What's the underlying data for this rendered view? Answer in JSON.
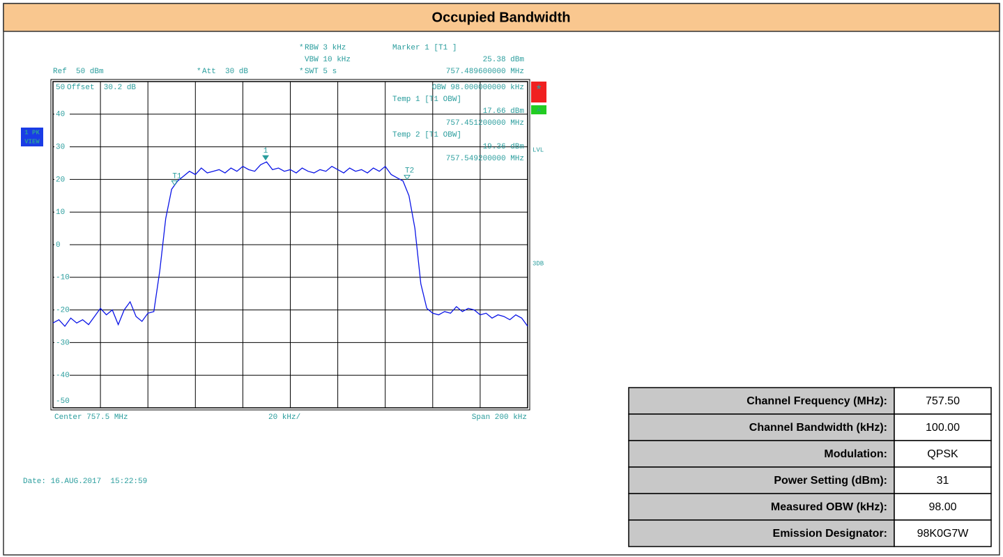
{
  "header": {
    "title": "Occupied Bandwidth"
  },
  "chart_data": {
    "type": "line",
    "x": [
      757.4,
      757.4025,
      757.405,
      757.4075,
      757.41,
      757.4125,
      757.415,
      757.4175,
      757.42,
      757.4225,
      757.425,
      757.4275,
      757.43,
      757.4325,
      757.435,
      757.4375,
      757.44,
      757.4425,
      757.445,
      757.4475,
      757.45,
      757.4525,
      757.455,
      757.4575,
      757.46,
      757.4625,
      757.465,
      757.4675,
      757.47,
      757.4725,
      757.475,
      757.4775,
      757.48,
      757.4825,
      757.485,
      757.4875,
      757.49,
      757.4925,
      757.495,
      757.4975,
      757.5,
      757.5025,
      757.505,
      757.5075,
      757.51,
      757.5125,
      757.515,
      757.5175,
      757.52,
      757.5225,
      757.525,
      757.5275,
      757.53,
      757.5325,
      757.535,
      757.5375,
      757.54,
      757.5425,
      757.545,
      757.5475,
      757.55,
      757.5525,
      757.555,
      757.5575,
      757.56,
      757.5625,
      757.565,
      757.5675,
      757.57,
      757.5725,
      757.575,
      757.5775,
      757.58,
      757.5825,
      757.585,
      757.5875,
      757.59,
      757.5925,
      757.595,
      757.5975,
      757.6
    ],
    "values": [
      -24,
      -23,
      -25,
      -22.5,
      -24,
      -23,
      -24.5,
      -22,
      -19.5,
      -21.5,
      -20,
      -24.5,
      -20,
      -17.5,
      -22,
      -23.5,
      -21,
      -20.5,
      -8,
      8,
      17,
      19.5,
      21,
      22.5,
      21.5,
      23.5,
      22,
      22.5,
      23,
      22,
      23.5,
      22.5,
      24,
      23,
      22.5,
      24.5,
      25.38,
      23,
      23.5,
      22.5,
      23,
      22,
      23.5,
      22.5,
      22,
      23,
      22.5,
      24,
      23,
      22,
      23.5,
      22.5,
      23,
      22,
      23.5,
      22.5,
      24,
      21.5,
      20.5,
      19.5,
      15,
      5,
      -12,
      -19.5,
      -21,
      -21.5,
      -20.5,
      -21,
      -19,
      -20.5,
      -19.5,
      -20,
      -21.5,
      -21,
      -22.5,
      -21.5,
      -22,
      -23,
      -21.5,
      -22.5,
      -25
    ],
    "color": "#0a14e6",
    "xlim": [
      757.4,
      757.6
    ],
    "ylim": [
      -50,
      50
    ],
    "xticks": [
      757.4,
      757.42,
      757.44,
      757.46,
      757.48,
      757.5,
      757.52,
      757.54,
      757.56,
      757.58,
      757.6
    ],
    "yticks": [
      50,
      40,
      30,
      20,
      10,
      0,
      -10,
      -20,
      -30,
      -40,
      -50
    ],
    "grid": true,
    "annotations": [
      "RBW 3 kHz",
      "VBW 10 kHz",
      "SWT 5 s",
      "Att  30 dB",
      "Ref  50 dBm",
      "Marker 1 [T1 ]",
      "25.38 dBm",
      "757.489600000 MHz",
      "Offset  30.2 dB",
      "OBW 98.000000000 kHz",
      "Temp 1 [T1 OBW]",
      "17.66 dBm",
      "757.451200000 MHz",
      "Temp 2 [T1 OBW]",
      "19.36 dBm",
      "757.549200000 MHz",
      "Center 757.5 MHz",
      "20 kHz/",
      "Span 200 kHz"
    ],
    "flag": "*",
    "side_labels": {
      "trace": [
        "1 PK",
        "VIEW"
      ],
      "a": "A",
      "lvl": "LVL",
      "db": "3DB"
    },
    "markers": [
      {
        "label": "1",
        "x": 757.4896,
        "y": 25.38
      },
      {
        "label": "T1",
        "x": 757.4512,
        "y": 17.66
      },
      {
        "label": "T2",
        "x": 757.5492,
        "y": 19.36
      }
    ],
    "date": "Date: 16.AUG.2017  15:22:59"
  },
  "table": {
    "rows": [
      [
        "Channel Frequency (MHz):",
        "757.50"
      ],
      [
        "Channel Bandwidth (kHz):",
        "100.00"
      ],
      [
        "Modulation:",
        "QPSK"
      ],
      [
        "Power Setting (dBm):",
        "31"
      ],
      [
        "Measured OBW (kHz):",
        "98.00"
      ],
      [
        "Emission Designator:",
        "98K0G7W"
      ]
    ]
  }
}
